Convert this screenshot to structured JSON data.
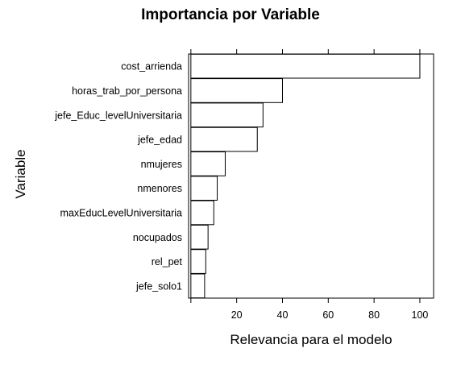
{
  "chart_data": {
    "type": "bar",
    "orientation": "horizontal",
    "title": "Importancia por Variable",
    "xlabel": "Relevancia para el modelo",
    "ylabel": "Variable",
    "categories": [
      "cost_arrienda",
      "horas_trab_por_persona",
      "jefe_Educ_levelUniversitaria",
      "jefe_edad",
      "nmujeres",
      "nmenores",
      "maxEducLevelUniversitaria",
      "nocupados",
      "rel_pet",
      "jefe_solo1"
    ],
    "values": [
      100,
      40,
      31.5,
      29,
      15,
      11.5,
      10,
      7.5,
      6.5,
      6
    ],
    "xlim": [
      -1,
      106
    ],
    "xticks": [
      0,
      20,
      40,
      60,
      80,
      100
    ],
    "xtick_labels": [
      "",
      "20",
      "40",
      "60",
      "80",
      "100"
    ],
    "grid": false,
    "colors": {
      "bar_fill": "#ffffff",
      "bar_stroke": "#000000"
    }
  }
}
